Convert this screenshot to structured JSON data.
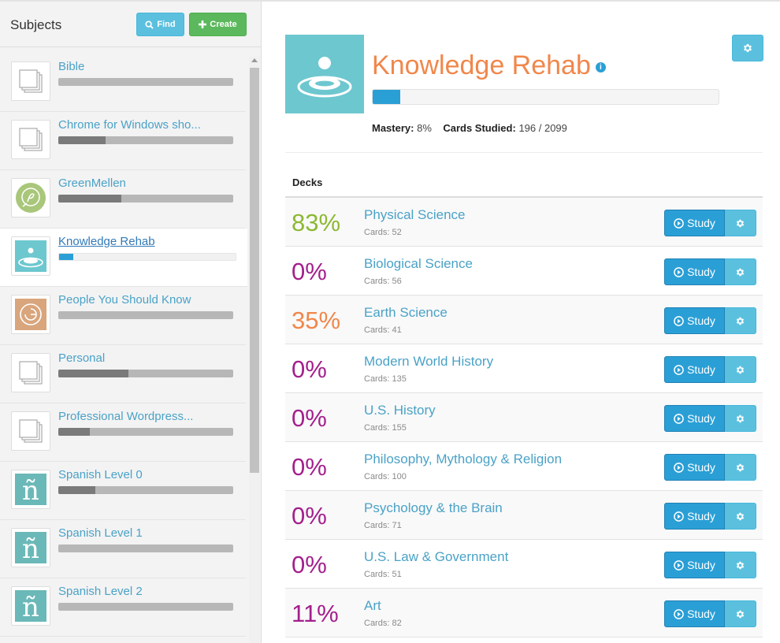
{
  "sidebar": {
    "title": "Subjects",
    "find_label": "Find",
    "create_label": "Create",
    "subjects": [
      {
        "name": "Bible",
        "progress": 0,
        "icon": "cards-icon"
      },
      {
        "name": "Chrome for Windows sho...",
        "progress": 0.27,
        "icon": "cards-icon"
      },
      {
        "name": "GreenMellen",
        "progress": 0.36,
        "icon": "greenmellen-logo"
      },
      {
        "name": "Knowledge Rehab",
        "progress": 0.08,
        "icon": "knowledge-rehab-logo",
        "active": true
      },
      {
        "name": "People You Should Know",
        "progress": 0,
        "icon": "people-logo"
      },
      {
        "name": "Personal",
        "progress": 0.4,
        "icon": "cards-icon"
      },
      {
        "name": "Professional Wordpress...",
        "progress": 0.18,
        "icon": "cards-icon"
      },
      {
        "name": "Spanish Level 0",
        "progress": 0.21,
        "icon": "n-tilde-icon"
      },
      {
        "name": "Spanish Level 1",
        "progress": 0,
        "icon": "n-tilde-icon"
      },
      {
        "name": "Spanish Level 2",
        "progress": 0,
        "icon": "n-tilde-icon"
      }
    ]
  },
  "main": {
    "title": "Knowledge Rehab",
    "info_glyph": "i",
    "mastery_label": "Mastery:",
    "mastery_value": "8%",
    "mastery_progress": 0.08,
    "studied_label": "Cards Studied:",
    "studied_value": "196 / 2099",
    "decks_heading": "Decks",
    "study_label": "Study",
    "decks": [
      {
        "pct": "83%",
        "name": "Physical Science",
        "cards": "Cards: 52",
        "color": "#8cb832"
      },
      {
        "pct": "0%",
        "name": "Biological Science",
        "cards": "Cards: 56",
        "color": "#a3208d"
      },
      {
        "pct": "35%",
        "name": "Earth Science",
        "cards": "Cards: 41",
        "color": "#f0874b"
      },
      {
        "pct": "0%",
        "name": "Modern World History",
        "cards": "Cards: 135",
        "color": "#a3208d"
      },
      {
        "pct": "0%",
        "name": "U.S. History",
        "cards": "Cards: 155",
        "color": "#a3208d"
      },
      {
        "pct": "0%",
        "name": "Philosophy, Mythology & Religion",
        "cards": "Cards: 100",
        "color": "#a3208d"
      },
      {
        "pct": "0%",
        "name": "Psychology & the Brain",
        "cards": "Cards: 71",
        "color": "#a3208d"
      },
      {
        "pct": "0%",
        "name": "U.S. Law & Government",
        "cards": "Cards: 51",
        "color": "#a3208d"
      },
      {
        "pct": "11%",
        "name": "Art",
        "cards": "Cards: 82",
        "color": "#a3208d"
      }
    ]
  },
  "colors": {
    "accent": "#2a9fd6",
    "info_button": "#5bc0de",
    "create_button": "#5cb85c",
    "title": "#f0874b"
  }
}
